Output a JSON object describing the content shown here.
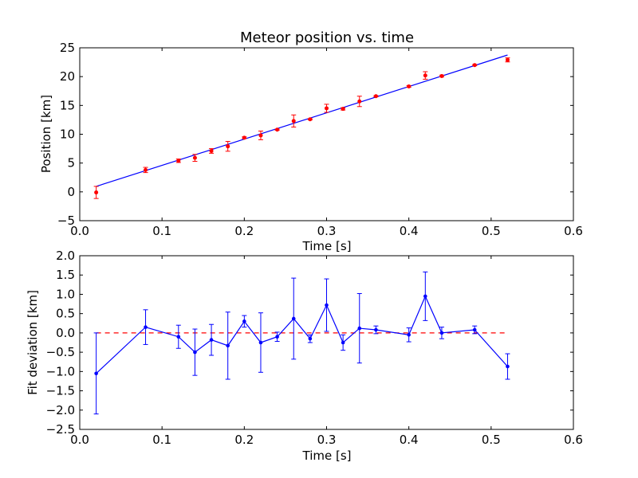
{
  "chart_data": [
    {
      "type": "scatter",
      "title": "Meteor position vs. time",
      "xlabel": "Time [s]",
      "ylabel": "Position [km]",
      "xlim": [
        0.0,
        0.6
      ],
      "ylim": [
        -5,
        25
      ],
      "x_ticks": [
        "0.0",
        "0.1",
        "0.2",
        "0.3",
        "0.4",
        "0.5",
        "0.6"
      ],
      "y_ticks": [
        "−5",
        "0",
        "5",
        "10",
        "15",
        "20",
        "25"
      ],
      "x_tick_values": [
        0.0,
        0.1,
        0.2,
        0.3,
        0.4,
        0.5,
        0.6
      ],
      "y_tick_values": [
        -5,
        0,
        5,
        10,
        15,
        20,
        25
      ],
      "grid": false,
      "colors": {
        "points": "#ff0000",
        "errorbars": "#ff0000",
        "fit": "#0000ff"
      },
      "series": [
        {
          "x": [
            0.02,
            0.08,
            0.12,
            0.14,
            0.16,
            0.18,
            0.2,
            0.22,
            0.24,
            0.26,
            0.28,
            0.3,
            0.32,
            0.34,
            0.36,
            0.4,
            0.42,
            0.44,
            0.48,
            0.52
          ],
          "y": [
            -0.1,
            3.8,
            5.4,
            5.9,
            7.1,
            7.9,
            9.4,
            9.8,
            10.8,
            12.3,
            12.6,
            14.5,
            14.4,
            15.7,
            16.6,
            18.3,
            20.2,
            20.1,
            22.0,
            22.9
          ],
          "err": [
            1.05,
            0.45,
            0.3,
            0.6,
            0.4,
            0.85,
            0.15,
            0.75,
            0.1,
            1.05,
            0.1,
            0.7,
            0.2,
            0.9,
            0.1,
            0.15,
            0.65,
            0.15,
            0.1,
            0.35
          ]
        },
        {
          "type": "line",
          "x": [
            0.02,
            0.52
          ],
          "y": [
            0.95,
            23.75
          ]
        }
      ]
    },
    {
      "type": "line",
      "xlabel": "Time [s]",
      "ylabel": "Fit deviation [km]",
      "xlim": [
        0.0,
        0.6
      ],
      "ylim": [
        -2.5,
        2.0
      ],
      "x_ticks": [
        "0.0",
        "0.1",
        "0.2",
        "0.3",
        "0.4",
        "0.5",
        "0.6"
      ],
      "y_ticks": [
        "−2.5",
        "−2.0",
        "−1.5",
        "−1.0",
        "−0.5",
        "0.0",
        "0.5",
        "1.0",
        "1.5",
        "2.0"
      ],
      "x_tick_values": [
        0.0,
        0.1,
        0.2,
        0.3,
        0.4,
        0.5,
        0.6
      ],
      "y_tick_values": [
        -2.5,
        -2.0,
        -1.5,
        -1.0,
        -0.5,
        0.0,
        0.5,
        1.0,
        1.5,
        2.0
      ],
      "grid": false,
      "colors": {
        "series": "#0000ff",
        "zero_line": "#ff0000"
      },
      "series": [
        {
          "x": [
            0.02,
            0.08,
            0.12,
            0.14,
            0.16,
            0.18,
            0.2,
            0.22,
            0.24,
            0.26,
            0.28,
            0.3,
            0.32,
            0.34,
            0.36,
            0.4,
            0.42,
            0.44,
            0.48,
            0.52
          ],
          "y": [
            -1.05,
            0.15,
            -0.1,
            -0.5,
            -0.18,
            -0.33,
            0.3,
            -0.25,
            -0.1,
            0.37,
            -0.15,
            0.72,
            -0.25,
            0.12,
            0.08,
            -0.05,
            0.95,
            0.0,
            0.08,
            -0.87
          ],
          "err": [
            1.05,
            0.45,
            0.3,
            0.6,
            0.4,
            0.87,
            0.15,
            0.77,
            0.12,
            1.05,
            0.1,
            0.68,
            0.2,
            0.9,
            0.1,
            0.18,
            0.63,
            0.15,
            0.1,
            0.33
          ]
        },
        {
          "type": "line",
          "style": "dashed",
          "x": [
            0.02,
            0.52
          ],
          "y": [
            0.0,
            0.0
          ]
        }
      ]
    }
  ]
}
